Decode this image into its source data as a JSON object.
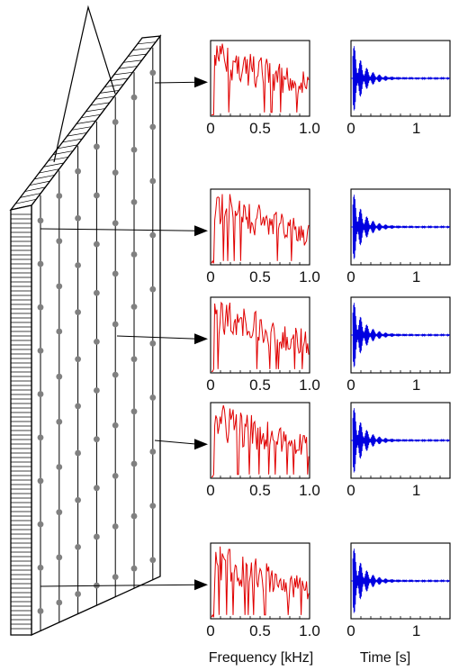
{
  "figure": {
    "x_axis_labels": {
      "frequency": "Frequency [kHz]",
      "time": "Time [s]"
    },
    "freq_ticks": [
      "0",
      "0.5",
      "1.0"
    ],
    "time_ticks": [
      "0",
      "1"
    ],
    "colors": {
      "frequency_trace": "#e00000",
      "time_trace": "#0000e0",
      "panel_stroke": "#000000",
      "sensor_dot": "#808080"
    },
    "sensor_grid": {
      "columns": 7,
      "rows": 10
    },
    "panels": [
      {
        "id": "row1",
        "ticks_shown": true
      },
      {
        "id": "row2",
        "ticks_shown": true
      },
      {
        "id": "row3",
        "ticks_shown": true
      },
      {
        "id": "row4",
        "ticks_shown": true
      },
      {
        "id": "row5",
        "ticks_shown": true
      }
    ]
  }
}
